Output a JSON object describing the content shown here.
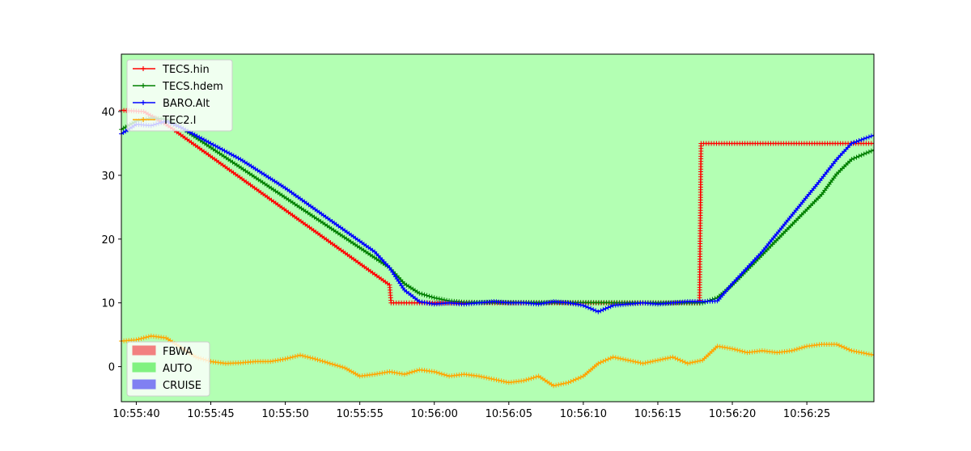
{
  "chart_data": {
    "type": "line",
    "background_color": "#b3ffb3",
    "grid": false,
    "xlim": [
      "10:55:39",
      "10:56:29.5"
    ],
    "ylim": [
      -5.5,
      49
    ],
    "x_ticks": [
      "10:55:40",
      "10:55:45",
      "10:55:50",
      "10:55:55",
      "10:56:00",
      "10:56:05",
      "10:56:10",
      "10:56:15",
      "10:56:20",
      "10:56:25"
    ],
    "y_ticks": [
      0,
      10,
      20,
      30,
      40
    ],
    "legend_series_placement": "top-left",
    "legend_modes_placement": "bottom-left",
    "series": [
      {
        "name": "TECS.hin",
        "color": "#ff0000",
        "points": [
          [
            "10:55:39",
            40.2
          ],
          [
            "10:55:40.5",
            40.0
          ],
          [
            "10:55:42",
            38.0
          ],
          [
            "10:55:57",
            12.8
          ],
          [
            "10:55:57.1",
            10.0
          ],
          [
            "10:56:17.8",
            10.0
          ],
          [
            "10:56:17.9",
            35.0
          ],
          [
            "10:56:29.5",
            35.0
          ]
        ]
      },
      {
        "name": "TECS.hdem",
        "color": "#008000",
        "points": [
          [
            "10:55:39",
            37.2
          ],
          [
            "10:55:40",
            38.5
          ],
          [
            "10:55:41",
            39.0
          ],
          [
            "10:55:42",
            38.8
          ],
          [
            "10:55:43",
            37.5
          ],
          [
            "10:55:57",
            15.5
          ],
          [
            "10:55:58",
            13.0
          ],
          [
            "10:55:59",
            11.5
          ],
          [
            "10:56:00",
            10.8
          ],
          [
            "10:56:01",
            10.3
          ],
          [
            "10:56:02",
            10.1
          ],
          [
            "10:56:18",
            10.0
          ],
          [
            "10:56:19",
            10.8
          ],
          [
            "10:56:20",
            12.8
          ],
          [
            "10:56:26",
            27.0
          ],
          [
            "10:56:27",
            30.2
          ],
          [
            "10:56:28",
            32.5
          ],
          [
            "10:56:29.5",
            34.0
          ]
        ]
      },
      {
        "name": "BARO.Alt",
        "color": "#0000ff",
        "points": [
          [
            "10:55:39",
            36.5
          ],
          [
            "10:55:40",
            38.0
          ],
          [
            "10:55:41",
            37.8
          ],
          [
            "10:55:42",
            38.5
          ],
          [
            "10:55:43",
            37.5
          ],
          [
            "10:55:45",
            35.0
          ],
          [
            "10:55:47",
            32.5
          ],
          [
            "10:55:50",
            28.0
          ],
          [
            "10:55:53",
            23.0
          ],
          [
            "10:55:56",
            18.0
          ],
          [
            "10:55:57",
            15.5
          ],
          [
            "10:55:58",
            12.0
          ],
          [
            "10:55:59",
            10.2
          ],
          [
            "10:56:00",
            9.8
          ],
          [
            "10:56:01",
            10.0
          ],
          [
            "10:56:02",
            9.8
          ],
          [
            "10:56:03",
            10.0
          ],
          [
            "10:56:04",
            10.2
          ],
          [
            "10:56:05",
            10.0
          ],
          [
            "10:56:06",
            10.0
          ],
          [
            "10:56:07",
            9.8
          ],
          [
            "10:56:08",
            10.2
          ],
          [
            "10:56:09",
            10.0
          ],
          [
            "10:56:10",
            9.6
          ],
          [
            "10:56:11",
            8.6
          ],
          [
            "10:56:12",
            9.6
          ],
          [
            "10:56:13",
            9.8
          ],
          [
            "10:56:14",
            10.0
          ],
          [
            "10:56:15",
            9.8
          ],
          [
            "10:56:16",
            10.0
          ],
          [
            "10:56:17",
            10.2
          ],
          [
            "10:56:18",
            10.2
          ],
          [
            "10:56:19",
            10.3
          ],
          [
            "10:56:20",
            13.0
          ],
          [
            "10:56:21",
            15.5
          ],
          [
            "10:56:22",
            18.0
          ],
          [
            "10:56:26",
            29.5
          ],
          [
            "10:56:27",
            32.5
          ],
          [
            "10:56:28",
            35.0
          ],
          [
            "10:56:29.5",
            36.3
          ]
        ]
      },
      {
        "name": "TEC2.I",
        "color": "#ffa500",
        "points": [
          [
            "10:55:39",
            4.0
          ],
          [
            "10:55:40",
            4.2
          ],
          [
            "10:55:41",
            4.8
          ],
          [
            "10:55:42",
            4.5
          ],
          [
            "10:55:43",
            3.0
          ],
          [
            "10:55:44",
            1.5
          ],
          [
            "10:55:45",
            0.8
          ],
          [
            "10:55:46",
            0.5
          ],
          [
            "10:55:47",
            0.6
          ],
          [
            "10:55:48",
            0.8
          ],
          [
            "10:55:49",
            0.8
          ],
          [
            "10:55:50",
            1.2
          ],
          [
            "10:55:51",
            1.8
          ],
          [
            "10:55:52",
            1.2
          ],
          [
            "10:55:53",
            0.5
          ],
          [
            "10:55:54",
            -0.2
          ],
          [
            "10:55:55",
            -1.5
          ],
          [
            "10:55:56",
            -1.2
          ],
          [
            "10:55:57",
            -0.8
          ],
          [
            "10:55:58",
            -1.2
          ],
          [
            "10:55:59",
            -0.5
          ],
          [
            "10:56:00",
            -0.8
          ],
          [
            "10:56:01",
            -1.5
          ],
          [
            "10:56:02",
            -1.2
          ],
          [
            "10:56:03",
            -1.5
          ],
          [
            "10:56:04",
            -2.0
          ],
          [
            "10:56:05",
            -2.5
          ],
          [
            "10:56:06",
            -2.2
          ],
          [
            "10:56:07",
            -1.5
          ],
          [
            "10:56:08",
            -3.0
          ],
          [
            "10:56:09",
            -2.5
          ],
          [
            "10:56:10",
            -1.5
          ],
          [
            "10:56:11",
            0.5
          ],
          [
            "10:56:12",
            1.5
          ],
          [
            "10:56:13",
            1.0
          ],
          [
            "10:56:14",
            0.5
          ],
          [
            "10:56:15",
            1.0
          ],
          [
            "10:56:16",
            1.5
          ],
          [
            "10:56:17",
            0.5
          ],
          [
            "10:56:18",
            1.0
          ],
          [
            "10:56:19",
            3.2
          ],
          [
            "10:56:20",
            2.8
          ],
          [
            "10:56:21",
            2.2
          ],
          [
            "10:56:22",
            2.5
          ],
          [
            "10:56:23",
            2.2
          ],
          [
            "10:56:24",
            2.5
          ],
          [
            "10:56:25",
            3.2
          ],
          [
            "10:56:26",
            3.5
          ],
          [
            "10:56:27",
            3.5
          ],
          [
            "10:56:28",
            2.5
          ],
          [
            "10:56:29.5",
            1.8
          ]
        ]
      }
    ],
    "mode_legend": [
      {
        "name": "FBWA",
        "color": "#f28080"
      },
      {
        "name": "AUTO",
        "color": "#80f280"
      },
      {
        "name": "CRUISE",
        "color": "#8080f2"
      }
    ]
  }
}
